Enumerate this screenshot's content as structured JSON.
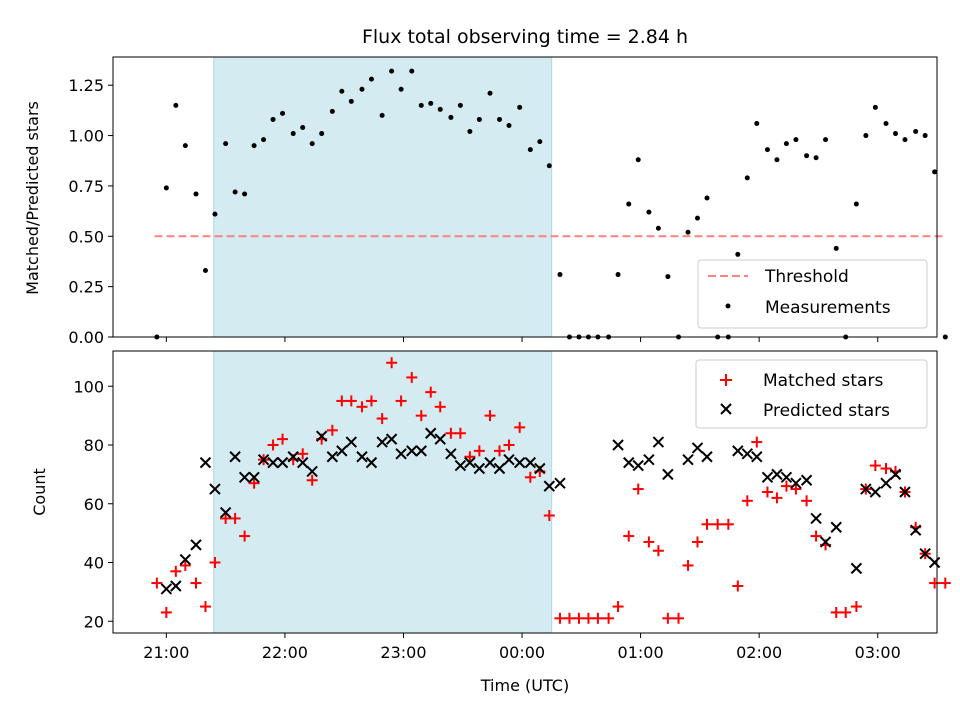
{
  "chart_data": [
    {
      "type": "scatter",
      "title": "Flux total observing time = 2.84 h",
      "xlabel": "",
      "ylabel": "Matched/Predicted stars",
      "ylim": [
        0,
        1.39
      ],
      "xlim": [
        20.55,
        27.5
      ],
      "yticks": [
        {
          "v": 0,
          "label": "0.00"
        },
        {
          "v": 0.25,
          "label": "0.25"
        },
        {
          "v": 0.5,
          "label": "0.50"
        },
        {
          "v": 0.75,
          "label": "0.75"
        },
        {
          "v": 1.0,
          "label": "1.00"
        },
        {
          "v": 1.25,
          "label": "1.25"
        }
      ],
      "shaded_span": [
        21.4,
        24.25
      ],
      "threshold": {
        "name": "Threshold",
        "y": 0.5,
        "x": [
          20.9,
          27.55
        ],
        "color": "#ff8080"
      },
      "legend": {
        "placement": "bottom-right",
        "entries": [
          "Threshold",
          "Measurements"
        ]
      },
      "series": [
        {
          "name": "Measurements",
          "color": "#000000",
          "points": [
            [
              20.92,
              0.0
            ],
            [
              21.0,
              0.74
            ],
            [
              21.08,
              1.15
            ],
            [
              21.16,
              0.95
            ],
            [
              21.25,
              0.71
            ],
            [
              21.33,
              0.33
            ],
            [
              21.41,
              0.61
            ],
            [
              21.5,
              0.96
            ],
            [
              21.58,
              0.72
            ],
            [
              21.66,
              0.71
            ],
            [
              21.74,
              0.95
            ],
            [
              21.82,
              0.98
            ],
            [
              21.9,
              1.08
            ],
            [
              21.98,
              1.11
            ],
            [
              22.07,
              1.01
            ],
            [
              22.15,
              1.04
            ],
            [
              22.23,
              0.96
            ],
            [
              22.31,
              1.01
            ],
            [
              22.4,
              1.12
            ],
            [
              22.48,
              1.22
            ],
            [
              22.56,
              1.17
            ],
            [
              22.65,
              1.23
            ],
            [
              22.73,
              1.28
            ],
            [
              22.82,
              1.1
            ],
            [
              22.9,
              1.32
            ],
            [
              22.98,
              1.23
            ],
            [
              23.07,
              1.32
            ],
            [
              23.15,
              1.15
            ],
            [
              23.23,
              1.16
            ],
            [
              23.31,
              1.13
            ],
            [
              23.4,
              1.09
            ],
            [
              23.48,
              1.15
            ],
            [
              23.56,
              1.02
            ],
            [
              23.64,
              1.08
            ],
            [
              23.73,
              1.21
            ],
            [
              23.81,
              1.08
            ],
            [
              23.89,
              1.05
            ],
            [
              23.98,
              1.14
            ],
            [
              24.07,
              0.93
            ],
            [
              24.15,
              0.97
            ],
            [
              24.23,
              0.85
            ],
            [
              24.32,
              0.31
            ],
            [
              24.4,
              0.0
            ],
            [
              24.48,
              0.0
            ],
            [
              24.56,
              0.0
            ],
            [
              24.64,
              0.0
            ],
            [
              24.73,
              0.0
            ],
            [
              24.81,
              0.31
            ],
            [
              24.9,
              0.66
            ],
            [
              24.98,
              0.88
            ],
            [
              25.07,
              0.62
            ],
            [
              25.15,
              0.54
            ],
            [
              25.23,
              0.3
            ],
            [
              25.32,
              0.0
            ],
            [
              25.4,
              0.52
            ],
            [
              25.48,
              0.59
            ],
            [
              25.56,
              0.69
            ],
            [
              25.65,
              0.0
            ],
            [
              25.74,
              0.0
            ],
            [
              25.82,
              0.41
            ],
            [
              25.9,
              0.79
            ],
            [
              25.98,
              1.06
            ],
            [
              26.07,
              0.93
            ],
            [
              26.15,
              0.88
            ],
            [
              26.23,
              0.96
            ],
            [
              26.31,
              0.98
            ],
            [
              26.4,
              0.9
            ],
            [
              26.48,
              0.89
            ],
            [
              26.56,
              0.98
            ],
            [
              26.65,
              0.44
            ],
            [
              26.73,
              0.0
            ],
            [
              26.82,
              0.66
            ],
            [
              26.9,
              1.0
            ],
            [
              26.98,
              1.14
            ],
            [
              27.07,
              1.06
            ],
            [
              27.15,
              1.01
            ],
            [
              27.23,
              0.98
            ],
            [
              27.32,
              1.02
            ],
            [
              27.4,
              1.0
            ],
            [
              27.48,
              0.82
            ],
            [
              27.57,
              0.0
            ]
          ]
        }
      ]
    },
    {
      "type": "scatter",
      "title": "",
      "xlabel": "Time (UTC)",
      "ylabel": "Count",
      "ylim": [
        16,
        112
      ],
      "xlim": [
        20.55,
        27.5
      ],
      "yticks": [
        {
          "v": 20,
          "label": "20"
        },
        {
          "v": 40,
          "label": "40"
        },
        {
          "v": 60,
          "label": "60"
        },
        {
          "v": 80,
          "label": "80"
        },
        {
          "v": 100,
          "label": "100"
        }
      ],
      "xticks": [
        {
          "v": 21,
          "label": "21:00"
        },
        {
          "v": 22,
          "label": "22:00"
        },
        {
          "v": 23,
          "label": "23:00"
        },
        {
          "v": 24,
          "label": "00:00"
        },
        {
          "v": 25,
          "label": "01:00"
        },
        {
          "v": 26,
          "label": "02:00"
        },
        {
          "v": 27,
          "label": "03:00"
        }
      ],
      "shaded_span": [
        21.4,
        24.25
      ],
      "legend": {
        "placement": "top-right",
        "entries": [
          "Matched stars",
          "Predicted stars"
        ]
      },
      "series": [
        {
          "name": "Matched stars",
          "color": "#ff0000",
          "marker": "+",
          "points": [
            [
              20.92,
              33
            ],
            [
              21.0,
              23
            ],
            [
              21.08,
              37
            ],
            [
              21.16,
              39
            ],
            [
              21.25,
              33
            ],
            [
              21.33,
              25
            ],
            [
              21.41,
              40
            ],
            [
              21.5,
              55
            ],
            [
              21.58,
              55
            ],
            [
              21.66,
              49
            ],
            [
              21.74,
              67
            ],
            [
              21.82,
              75
            ],
            [
              21.9,
              80
            ],
            [
              21.98,
              82
            ],
            [
              22.07,
              75
            ],
            [
              22.15,
              77
            ],
            [
              22.23,
              68
            ],
            [
              22.31,
              82
            ],
            [
              22.4,
              85
            ],
            [
              22.48,
              95
            ],
            [
              22.56,
              95
            ],
            [
              22.65,
              93
            ],
            [
              22.73,
              95
            ],
            [
              22.82,
              89
            ],
            [
              22.9,
              108
            ],
            [
              22.98,
              95
            ],
            [
              23.07,
              103
            ],
            [
              23.15,
              90
            ],
            [
              23.23,
              98
            ],
            [
              23.31,
              93
            ],
            [
              23.4,
              84
            ],
            [
              23.48,
              84
            ],
            [
              23.56,
              76
            ],
            [
              23.64,
              78
            ],
            [
              23.73,
              90
            ],
            [
              23.81,
              78
            ],
            [
              23.89,
              80
            ],
            [
              23.98,
              86
            ],
            [
              24.07,
              69
            ],
            [
              24.15,
              71
            ],
            [
              24.23,
              56
            ],
            [
              24.32,
              21
            ],
            [
              24.4,
              21
            ],
            [
              24.48,
              21
            ],
            [
              24.56,
              21
            ],
            [
              24.64,
              21
            ],
            [
              24.73,
              21
            ],
            [
              24.81,
              25
            ],
            [
              24.9,
              49
            ],
            [
              24.98,
              65
            ],
            [
              25.07,
              47
            ],
            [
              25.15,
              44
            ],
            [
              25.23,
              21
            ],
            [
              25.32,
              21
            ],
            [
              25.4,
              39
            ],
            [
              25.48,
              47
            ],
            [
              25.56,
              53
            ],
            [
              25.65,
              53
            ],
            [
              25.74,
              53
            ],
            [
              25.82,
              32
            ],
            [
              25.9,
              61
            ],
            [
              25.98,
              81
            ],
            [
              26.07,
              64
            ],
            [
              26.15,
              62
            ],
            [
              26.23,
              66
            ],
            [
              26.31,
              65
            ],
            [
              26.4,
              61
            ],
            [
              26.48,
              49
            ],
            [
              26.56,
              46
            ],
            [
              26.65,
              23
            ],
            [
              26.73,
              23
            ],
            [
              26.82,
              25
            ],
            [
              26.9,
              65
            ],
            [
              26.98,
              73
            ],
            [
              27.07,
              72
            ],
            [
              27.15,
              71
            ],
            [
              27.23,
              64
            ],
            [
              27.32,
              52
            ],
            [
              27.4,
              43
            ],
            [
              27.48,
              33
            ],
            [
              27.57,
              33
            ]
          ]
        },
        {
          "name": "Predicted stars",
          "color": "#000000",
          "marker": "x",
          "points": [
            [
              21.0,
              31
            ],
            [
              21.08,
              32
            ],
            [
              21.16,
              41
            ],
            [
              21.25,
              46
            ],
            [
              21.33,
              74
            ],
            [
              21.41,
              65
            ],
            [
              21.5,
              57
            ],
            [
              21.58,
              76
            ],
            [
              21.66,
              69
            ],
            [
              21.74,
              69
            ],
            [
              21.82,
              75
            ],
            [
              21.9,
              74
            ],
            [
              21.98,
              74
            ],
            [
              22.07,
              76
            ],
            [
              22.15,
              74
            ],
            [
              22.23,
              71
            ],
            [
              22.31,
              83
            ],
            [
              22.4,
              76
            ],
            [
              22.48,
              78
            ],
            [
              22.56,
              81
            ],
            [
              22.65,
              76
            ],
            [
              22.73,
              74
            ],
            [
              22.82,
              81
            ],
            [
              22.9,
              82
            ],
            [
              22.98,
              77
            ],
            [
              23.07,
              78
            ],
            [
              23.15,
              78
            ],
            [
              23.23,
              84
            ],
            [
              23.31,
              82
            ],
            [
              23.4,
              77
            ],
            [
              23.48,
              73
            ],
            [
              23.56,
              74
            ],
            [
              23.64,
              72
            ],
            [
              23.73,
              74
            ],
            [
              23.81,
              72
            ],
            [
              23.89,
              75
            ],
            [
              23.98,
              74
            ],
            [
              24.07,
              74
            ],
            [
              24.15,
              72
            ],
            [
              24.23,
              66
            ],
            [
              24.32,
              67
            ],
            [
              24.81,
              80
            ],
            [
              24.9,
              74
            ],
            [
              24.98,
              73
            ],
            [
              25.07,
              75
            ],
            [
              25.15,
              81
            ],
            [
              25.23,
              70
            ],
            [
              25.4,
              75
            ],
            [
              25.48,
              79
            ],
            [
              25.56,
              76
            ],
            [
              25.82,
              78
            ],
            [
              25.9,
              77
            ],
            [
              25.98,
              76
            ],
            [
              26.07,
              69
            ],
            [
              26.15,
              70
            ],
            [
              26.23,
              69
            ],
            [
              26.31,
              67
            ],
            [
              26.4,
              68
            ],
            [
              26.48,
              55
            ],
            [
              26.56,
              47
            ],
            [
              26.65,
              52
            ],
            [
              26.82,
              38
            ],
            [
              26.9,
              65
            ],
            [
              26.98,
              64
            ],
            [
              27.07,
              67
            ],
            [
              27.15,
              70
            ],
            [
              27.23,
              64
            ],
            [
              27.32,
              51
            ],
            [
              27.4,
              43
            ],
            [
              27.48,
              40
            ]
          ]
        }
      ]
    }
  ]
}
